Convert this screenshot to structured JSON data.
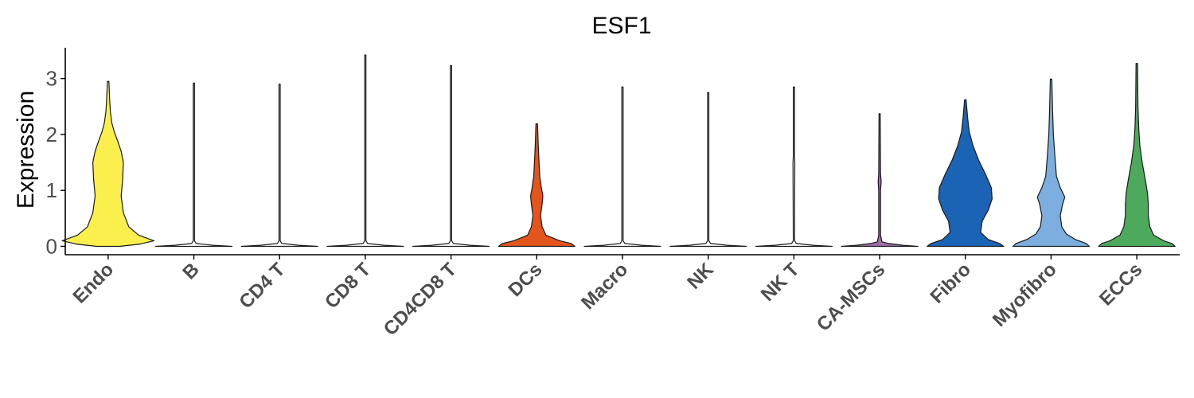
{
  "chart_data": {
    "type": "violin",
    "title": "ESF1",
    "xlabel": "",
    "ylabel": "Expression",
    "ylim": [
      -0.15,
      3.55
    ],
    "yticks": [
      0,
      1,
      2,
      3
    ],
    "grid": false,
    "legend": "none",
    "categories": [
      "Endo",
      "B",
      "CD4 T",
      "CD8 T",
      "CD4CD8 T",
      "DCs",
      "Macro",
      "NK",
      "NK T",
      "CA-MSCs",
      "Fibro",
      "Myofibro",
      "ECCs"
    ],
    "colors": [
      "#fbef4d",
      "#ffffff",
      "#ffffff",
      "#ffffff",
      "#ffffff",
      "#e4551e",
      "#ffffff",
      "#ffffff",
      "#ffffff",
      "#9b6ea8",
      "#1b63b5",
      "#7caee0",
      "#4daa5c"
    ],
    "max_values": [
      2.95,
      2.92,
      2.9,
      3.42,
      3.23,
      2.19,
      2.85,
      2.75,
      2.85,
      2.37,
      2.62,
      2.99,
      3.27
    ],
    "density_profiles": [
      [
        [
          0,
          0.15
        ],
        [
          0.04,
          0.42
        ],
        [
          0.1,
          0.6
        ],
        [
          0.2,
          0.4
        ],
        [
          0.35,
          0.27
        ],
        [
          0.6,
          0.2
        ],
        [
          0.9,
          0.17
        ],
        [
          1.2,
          0.19
        ],
        [
          1.5,
          0.2
        ],
        [
          1.7,
          0.17
        ],
        [
          1.9,
          0.12
        ],
        [
          2.05,
          0.08
        ],
        [
          2.2,
          0.05
        ],
        [
          2.4,
          0.03
        ],
        [
          2.6,
          0.02
        ],
        [
          2.95,
          0.01
        ]
      ],
      [
        [
          0,
          0.5
        ],
        [
          0.02,
          0.25
        ],
        [
          0.05,
          0.03
        ],
        [
          0.1,
          0.008
        ],
        [
          2.92,
          0.008
        ]
      ],
      [
        [
          0,
          0.5
        ],
        [
          0.02,
          0.25
        ],
        [
          0.05,
          0.03
        ],
        [
          0.1,
          0.008
        ],
        [
          2.9,
          0.008
        ]
      ],
      [
        [
          0,
          0.5
        ],
        [
          0.02,
          0.25
        ],
        [
          0.05,
          0.03
        ],
        [
          0.1,
          0.008
        ],
        [
          3.42,
          0.008
        ]
      ],
      [
        [
          0,
          0.5
        ],
        [
          0.02,
          0.25
        ],
        [
          0.05,
          0.03
        ],
        [
          0.1,
          0.008
        ],
        [
          3.23,
          0.008
        ]
      ],
      [
        [
          0,
          0.5
        ],
        [
          0.05,
          0.45
        ],
        [
          0.1,
          0.3
        ],
        [
          0.2,
          0.12
        ],
        [
          0.35,
          0.07
        ],
        [
          0.55,
          0.05
        ],
        [
          0.75,
          0.07
        ],
        [
          0.9,
          0.08
        ],
        [
          1.05,
          0.06
        ],
        [
          1.25,
          0.04
        ],
        [
          1.5,
          0.03
        ],
        [
          1.8,
          0.02
        ],
        [
          2.19,
          0.01
        ]
      ],
      [
        [
          0,
          0.5
        ],
        [
          0.02,
          0.25
        ],
        [
          0.05,
          0.03
        ],
        [
          0.1,
          0.008
        ],
        [
          2.85,
          0.008
        ]
      ],
      [
        [
          0,
          0.5
        ],
        [
          0.02,
          0.25
        ],
        [
          0.05,
          0.03
        ],
        [
          0.1,
          0.008
        ],
        [
          2.75,
          0.008
        ]
      ],
      [
        [
          0,
          0.5
        ],
        [
          0.02,
          0.25
        ],
        [
          0.05,
          0.03
        ],
        [
          0.1,
          0.008
        ],
        [
          1.5,
          0.012
        ],
        [
          1.6,
          0.008
        ],
        [
          2.85,
          0.008
        ]
      ],
      [
        [
          0,
          0.5
        ],
        [
          0.02,
          0.3
        ],
        [
          0.05,
          0.12
        ],
        [
          0.08,
          0.03
        ],
        [
          0.2,
          0.012
        ],
        [
          1.0,
          0.012
        ],
        [
          1.15,
          0.02
        ],
        [
          1.3,
          0.012
        ],
        [
          2.37,
          0.008
        ]
      ],
      [
        [
          0,
          0.5
        ],
        [
          0.05,
          0.45
        ],
        [
          0.12,
          0.3
        ],
        [
          0.25,
          0.2
        ],
        [
          0.45,
          0.22
        ],
        [
          0.65,
          0.3
        ],
        [
          0.85,
          0.35
        ],
        [
          1.05,
          0.34
        ],
        [
          1.3,
          0.26
        ],
        [
          1.55,
          0.17
        ],
        [
          1.8,
          0.1
        ],
        [
          2.05,
          0.05
        ],
        [
          2.3,
          0.03
        ],
        [
          2.62,
          0.01
        ]
      ],
      [
        [
          0,
          0.5
        ],
        [
          0.05,
          0.46
        ],
        [
          0.12,
          0.32
        ],
        [
          0.22,
          0.2
        ],
        [
          0.35,
          0.14
        ],
        [
          0.55,
          0.12
        ],
        [
          0.75,
          0.15
        ],
        [
          0.88,
          0.18
        ],
        [
          1.05,
          0.12
        ],
        [
          1.25,
          0.07
        ],
        [
          1.6,
          0.05
        ],
        [
          2.0,
          0.03
        ],
        [
          2.4,
          0.02
        ],
        [
          2.99,
          0.01
        ]
      ],
      [
        [
          0,
          0.5
        ],
        [
          0.05,
          0.46
        ],
        [
          0.1,
          0.35
        ],
        [
          0.2,
          0.22
        ],
        [
          0.35,
          0.17
        ],
        [
          0.55,
          0.15
        ],
        [
          0.75,
          0.15
        ],
        [
          0.95,
          0.14
        ],
        [
          1.2,
          0.11
        ],
        [
          1.5,
          0.07
        ],
        [
          1.8,
          0.04
        ],
        [
          2.1,
          0.025
        ],
        [
          2.5,
          0.015
        ],
        [
          3.27,
          0.01
        ]
      ]
    ]
  }
}
